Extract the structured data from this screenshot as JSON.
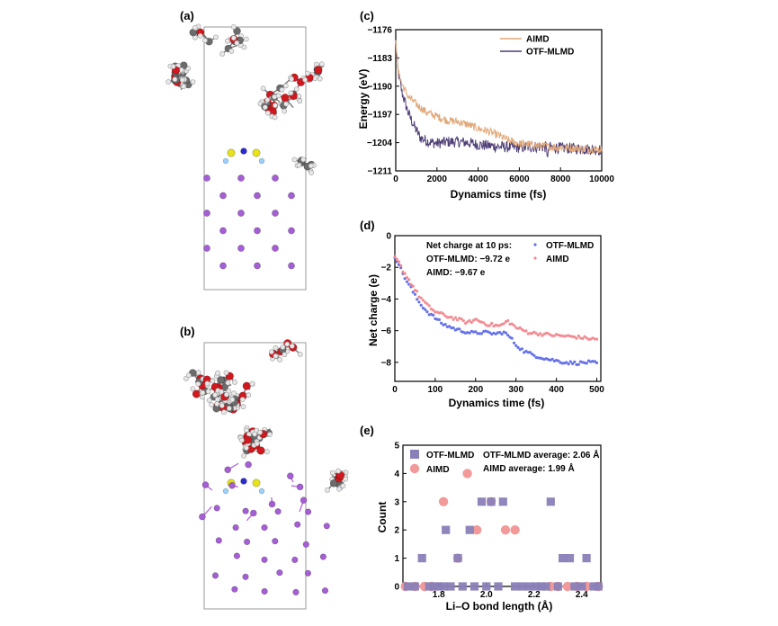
{
  "colors": {
    "aimd_line": "#E0A87A",
    "otf_line": "#4F3F76",
    "otf_dots": "#6673E8",
    "aimd_dots": "#F28C93",
    "otf_square": "#8A80B8",
    "aimd_circle": "#F29A9A",
    "carbon": "#6b6b6b",
    "oxygen": "#d0191f",
    "hydrogen": "#e8e8e8",
    "lithium": "#a55ed6",
    "sulfur": "#e7e21a",
    "nitrogen": "#2a2ad0",
    "fluorine": "#9fd0ff"
  },
  "panels": {
    "a": {
      "label": "(a)"
    },
    "b": {
      "label": "(b)"
    }
  },
  "chart_data": [
    {
      "id": "c",
      "panel_label": "(c)",
      "type": "line",
      "xlabel": "Dynamics time (fs)",
      "ylabel": "Energy (eV)",
      "xlim": [
        0,
        10000
      ],
      "ylim": [
        -1211,
        -1176
      ],
      "xticks": [
        0,
        2000,
        4000,
        6000,
        8000,
        10000
      ],
      "yticks": [
        -1176,
        -1183,
        -1190,
        -1197,
        -1204,
        -1211
      ],
      "legend_position": "top-right",
      "series": [
        {
          "name": "AIMD",
          "key": [
            [
              0,
              -1178
            ],
            [
              100,
              -1186
            ],
            [
              300,
              -1189.5
            ],
            [
              600,
              -1192.5
            ],
            [
              1000,
              -1194.5
            ],
            [
              1500,
              -1196.5
            ],
            [
              2000,
              -1197.5
            ],
            [
              2500,
              -1198.5
            ],
            [
              3000,
              -1198.8
            ],
            [
              3500,
              -1199.5
            ],
            [
              4000,
              -1200.5
            ],
            [
              4500,
              -1201.2
            ],
            [
              5000,
              -1202.2
            ],
            [
              5500,
              -1203.5
            ],
            [
              6000,
              -1204.2
            ],
            [
              7000,
              -1204.8
            ],
            [
              8000,
              -1205.2
            ],
            [
              9000,
              -1205.5
            ],
            [
              10000,
              -1205.7
            ]
          ],
          "noise": 1.0
        },
        {
          "name": "OTF-MLMD",
          "key": [
            [
              0,
              -1179
            ],
            [
              100,
              -1186
            ],
            [
              300,
              -1191.5
            ],
            [
              600,
              -1196.5
            ],
            [
              900,
              -1200
            ],
            [
              1200,
              -1202.8
            ],
            [
              1600,
              -1203.8
            ],
            [
              2000,
              -1204.2
            ],
            [
              2500,
              -1203.8
            ],
            [
              3000,
              -1203.8
            ],
            [
              3500,
              -1204
            ],
            [
              4000,
              -1204.5
            ],
            [
              5000,
              -1205
            ],
            [
              6000,
              -1205.2
            ],
            [
              7000,
              -1205
            ],
            [
              8000,
              -1205.3
            ],
            [
              9000,
              -1205.5
            ],
            [
              10000,
              -1205.8
            ]
          ],
          "noise": 1.4
        }
      ]
    },
    {
      "id": "d",
      "panel_label": "(d)",
      "type": "scatter",
      "xlabel": "Dynamics time (fs)",
      "ylabel": "Net charge (e)",
      "xlim": [
        0,
        510
      ],
      "ylim": [
        -9.2,
        0
      ],
      "xticks": [
        0,
        100,
        200,
        300,
        400,
        500
      ],
      "yticks": [
        0,
        -2,
        -4,
        -6,
        -8
      ],
      "legend_position": "top-right",
      "annotation": [
        "Net charge at 10 ps:",
        "OTF-MLMD: −9.72 e",
        "AIMD: −9.67 e"
      ],
      "series": [
        {
          "name": "OTF-MLMD",
          "key": [
            [
              0,
              -1.3
            ],
            [
              10,
              -1.8
            ],
            [
              20,
              -2.4
            ],
            [
              30,
              -2.9
            ],
            [
              40,
              -3.3
            ],
            [
              50,
              -3.8
            ],
            [
              60,
              -4.2
            ],
            [
              80,
              -4.8
            ],
            [
              100,
              -5.2
            ],
            [
              120,
              -5.6
            ],
            [
              150,
              -5.9
            ],
            [
              180,
              -6.1
            ],
            [
              200,
              -6.15
            ],
            [
              220,
              -6.1
            ],
            [
              250,
              -6.2
            ],
            [
              270,
              -6.1
            ],
            [
              285,
              -6.4
            ],
            [
              300,
              -6.9
            ],
            [
              320,
              -7.3
            ],
            [
              350,
              -7.6
            ],
            [
              380,
              -7.8
            ],
            [
              400,
              -7.9
            ],
            [
              420,
              -8.0
            ],
            [
              450,
              -8.05
            ],
            [
              480,
              -8.0
            ],
            [
              500,
              -8.05
            ]
          ],
          "noise": 0.1
        },
        {
          "name": "AIMD",
          "key": [
            [
              0,
              -1.4
            ],
            [
              10,
              -1.7
            ],
            [
              20,
              -2.2
            ],
            [
              30,
              -2.6
            ],
            [
              40,
              -3.0
            ],
            [
              60,
              -3.8
            ],
            [
              80,
              -4.4
            ],
            [
              100,
              -4.8
            ],
            [
              130,
              -5.1
            ],
            [
              160,
              -5.3
            ],
            [
              180,
              -5.5
            ],
            [
              200,
              -5.3
            ],
            [
              230,
              -5.6
            ],
            [
              260,
              -5.7
            ],
            [
              280,
              -5.4
            ],
            [
              300,
              -5.8
            ],
            [
              330,
              -6.1
            ],
            [
              360,
              -6.2
            ],
            [
              400,
              -6.3
            ],
            [
              450,
              -6.4
            ],
            [
              500,
              -6.55
            ]
          ],
          "noise": 0.1
        }
      ]
    },
    {
      "id": "e",
      "panel_label": "(e)",
      "type": "scatter",
      "xlabel": "Li–O bond length (Å)",
      "ylabel": "Count",
      "xlim": [
        1.65,
        2.48
      ],
      "ylim": [
        0,
        5
      ],
      "xticks": [
        1.8,
        2.0,
        2.2,
        2.4
      ],
      "xtick_labels": [
        "1.8",
        "2.0",
        "2.2",
        "2.4"
      ],
      "yticks": [
        0,
        1,
        2,
        3,
        4,
        5
      ],
      "legend_position": "top-left",
      "annotation": [
        "OTF-MLMD average: 2.06 Å",
        "AIMD average: 1.99 Å"
      ],
      "series": [
        {
          "name": "OTF-MLMD",
          "x": [
            1.67,
            1.7,
            1.73,
            1.76,
            1.78,
            1.8,
            1.82,
            1.83,
            1.85,
            1.88,
            1.9,
            1.93,
            1.95,
            1.98,
            2.0,
            2.02,
            2.05,
            2.07,
            2.12,
            2.15,
            2.18,
            2.21,
            2.23,
            2.25,
            2.27,
            2.3,
            2.32,
            2.35,
            2.37,
            2.4,
            2.42,
            2.45,
            2.47
          ],
          "y": [
            0,
            0,
            1,
            0,
            0,
            0,
            0,
            2,
            0,
            1,
            0,
            2,
            0,
            3,
            0,
            3,
            0,
            3,
            0,
            0,
            0,
            0,
            0,
            0,
            3,
            0,
            1,
            1,
            0,
            0,
            1,
            0,
            0
          ]
        },
        {
          "name": "AIMD",
          "x": [
            1.66,
            1.7,
            1.74,
            1.77,
            1.82,
            1.88,
            1.92,
            1.96,
            2.02,
            2.08,
            2.12,
            2.27,
            2.3,
            2.34,
            2.38,
            2.42,
            2.47
          ],
          "y": [
            0,
            0,
            0,
            0,
            3,
            1,
            4,
            2,
            3,
            2,
            2,
            0,
            0,
            0,
            0,
            0,
            0
          ]
        }
      ]
    }
  ]
}
